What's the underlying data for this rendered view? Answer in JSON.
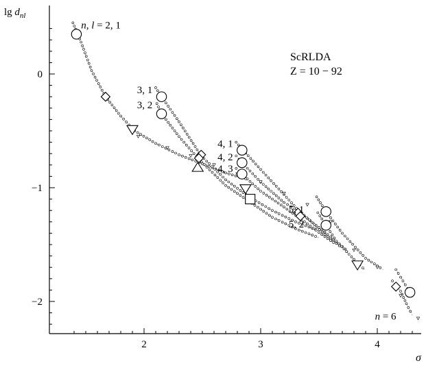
{
  "chart_data": {
    "type": "scatter",
    "title": "ScRLDA",
    "subtitle": "Z = 10 − 92",
    "xlabel": "σ",
    "ylabel": "lg d_nl",
    "xlim": [
      1.3,
      4.45
    ],
    "ylim": [
      -2.48,
      0.52
    ],
    "xticks": [
      2,
      3,
      4
    ],
    "yticks": [
      0,
      -1,
      -2
    ],
    "xtick_labels": [
      "2",
      "3",
      "4"
    ],
    "ytick_labels": [
      "0",
      "−1",
      "−2"
    ],
    "grid": false,
    "legend": "none",
    "annotations": [
      {
        "text": "n, l = 2, 1",
        "x": 1.46,
        "y": 0.43
      },
      {
        "text": "3, 1",
        "x": 1.94,
        "y": -0.14
      },
      {
        "text": "3, 2",
        "x": 1.94,
        "y": -0.27
      },
      {
        "text": "4, 1",
        "x": 2.63,
        "y": -0.61
      },
      {
        "text": "4, 2",
        "x": 2.63,
        "y": -0.73
      },
      {
        "text": "4, 3",
        "x": 2.63,
        "y": -0.83
      },
      {
        "text": "5, 1",
        "x": 3.24,
        "y": -1.19
      },
      {
        "text": "5, 2",
        "x": 3.24,
        "y": -1.32
      },
      {
        "text": "n = 6",
        "x": 3.98,
        "y": -2.13
      }
    ],
    "series": [
      {
        "label": "2, 1",
        "points": [
          [
            1.39,
            0.45
          ],
          [
            1.46,
            0.28
          ],
          [
            1.55,
            0.03
          ],
          [
            1.67,
            -0.2
          ],
          [
            1.8,
            -0.37
          ],
          [
            1.92,
            -0.5
          ]
        ]
      },
      {
        "label": "2, 1 (continuation)",
        "points": [
          [
            1.92,
            -0.5
          ],
          [
            2.1,
            -0.61
          ],
          [
            2.3,
            -0.71
          ],
          [
            2.5,
            -0.79
          ],
          [
            2.7,
            -0.87
          ],
          [
            2.9,
            -0.93
          ]
        ]
      },
      {
        "label": "3, 1",
        "points": [
          [
            2.1,
            -0.12
          ],
          [
            2.15,
            -0.2
          ],
          [
            2.3,
            -0.42
          ],
          [
            2.49,
            -0.72
          ],
          [
            2.7,
            -0.93
          ],
          [
            2.9,
            -1.08
          ],
          [
            3.1,
            -1.2
          ],
          [
            3.3,
            -1.3
          ],
          [
            3.5,
            -1.38
          ]
        ]
      },
      {
        "label": "3, 2",
        "points": [
          [
            2.11,
            -0.26
          ],
          [
            2.15,
            -0.35
          ],
          [
            2.3,
            -0.55
          ],
          [
            2.47,
            -0.75
          ],
          [
            2.7,
            -0.98
          ],
          [
            2.9,
            -1.12
          ],
          [
            3.1,
            -1.26
          ],
          [
            3.3,
            -1.36
          ],
          [
            3.5,
            -1.44
          ]
        ]
      },
      {
        "label": "4, 1",
        "points": [
          [
            2.79,
            -0.6
          ],
          [
            2.85,
            -0.67
          ],
          [
            3.0,
            -0.84
          ],
          [
            3.2,
            -1.06
          ],
          [
            3.35,
            -1.23
          ],
          [
            3.55,
            -1.39
          ],
          [
            3.75,
            -1.56
          ]
        ]
      },
      {
        "label": "4, 2",
        "points": [
          [
            2.79,
            -0.72
          ],
          [
            2.84,
            -0.78
          ],
          [
            3.0,
            -0.95
          ],
          [
            3.2,
            -1.13
          ],
          [
            3.35,
            -1.22
          ],
          [
            3.55,
            -1.41
          ],
          [
            3.7,
            -1.53
          ]
        ]
      },
      {
        "label": "4, 3",
        "points": [
          [
            2.79,
            -0.83
          ],
          [
            2.84,
            -0.88
          ],
          [
            3.0,
            -1.03
          ],
          [
            3.2,
            -1.17
          ],
          [
            3.35,
            -1.28
          ],
          [
            3.55,
            -1.43
          ],
          [
            3.65,
            -1.5
          ]
        ]
      },
      {
        "label": "5, 1",
        "points": [
          [
            3.48,
            -1.08
          ],
          [
            3.56,
            -1.21
          ],
          [
            3.7,
            -1.4
          ],
          [
            3.9,
            -1.62
          ],
          [
            4.05,
            -1.72
          ]
        ]
      },
      {
        "label": "5, 2",
        "points": [
          [
            3.49,
            -1.22
          ],
          [
            3.56,
            -1.33
          ],
          [
            3.65,
            -1.47
          ],
          [
            3.8,
            -1.63
          ],
          [
            3.9,
            -1.73
          ]
        ]
      },
      {
        "label": "n = 6",
        "points": [
          [
            4.16,
            -1.72
          ],
          [
            4.22,
            -1.82
          ],
          [
            4.28,
            -1.92
          ],
          [
            4.3,
            -1.97
          ]
        ]
      },
      {
        "label": "n = 6 (lower)",
        "points": [
          [
            4.13,
            -1.82
          ],
          [
            4.2,
            -1.91
          ],
          [
            4.25,
            -2.02
          ],
          [
            4.3,
            -2.12
          ]
        ]
      }
    ],
    "markers": [
      {
        "shape": "circle",
        "x": 1.42,
        "y": 0.35
      },
      {
        "shape": "diamond",
        "x": 1.67,
        "y": -0.2
      },
      {
        "shape": "triangle-down",
        "x": 1.9,
        "y": -0.49
      },
      {
        "shape": "circle",
        "x": 2.15,
        "y": -0.2
      },
      {
        "shape": "circle",
        "x": 2.15,
        "y": -0.35
      },
      {
        "shape": "diamond",
        "x": 2.49,
        "y": -0.71
      },
      {
        "shape": "triangle-up",
        "x": 2.46,
        "y": -0.82
      },
      {
        "shape": "diamond",
        "x": 2.47,
        "y": -0.74
      },
      {
        "shape": "circle",
        "x": 2.84,
        "y": -0.67
      },
      {
        "shape": "circle",
        "x": 2.84,
        "y": -0.78
      },
      {
        "shape": "circle",
        "x": 2.84,
        "y": -0.88
      },
      {
        "shape": "triangle-down",
        "x": 2.87,
        "y": -1.01
      },
      {
        "shape": "square",
        "x": 2.91,
        "y": -1.1
      },
      {
        "shape": "diamond",
        "x": 3.32,
        "y": -1.22
      },
      {
        "shape": "diamond",
        "x": 3.34,
        "y": -1.25
      },
      {
        "shape": "circle",
        "x": 3.56,
        "y": -1.21
      },
      {
        "shape": "circle",
        "x": 3.56,
        "y": -1.33
      },
      {
        "shape": "triangle-down",
        "x": 3.83,
        "y": -1.68
      },
      {
        "shape": "diamond",
        "x": 4.16,
        "y": -1.87
      },
      {
        "shape": "circle",
        "x": 4.28,
        "y": -1.92
      }
    ],
    "scatter_small_triangles": [
      [
        1.95,
        -0.55
      ],
      [
        2.2,
        -0.65
      ],
      [
        2.4,
        -0.72
      ],
      [
        2.6,
        -0.8
      ],
      [
        2.8,
        -0.88
      ],
      [
        3.0,
        -0.95
      ],
      [
        3.2,
        -1.05
      ],
      [
        3.4,
        -1.15
      ],
      [
        3.6,
        -1.3
      ],
      [
        3.8,
        -1.55
      ],
      [
        4.0,
        -1.7
      ],
      [
        4.2,
        -1.95
      ],
      [
        4.35,
        -2.15
      ]
    ]
  }
}
